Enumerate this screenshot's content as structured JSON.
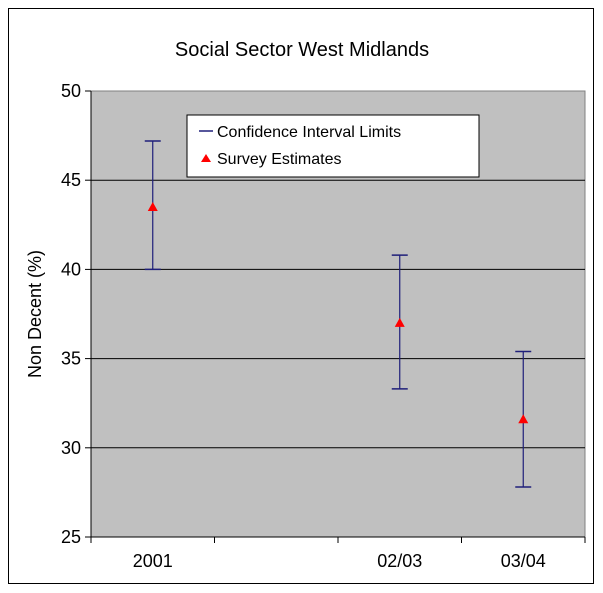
{
  "chart_data": {
    "type": "scatter",
    "title": "Social Sector West Midlands",
    "xlabel": "",
    "ylabel": "Non Decent (%)",
    "ylim": [
      25,
      50
    ],
    "yticks": [
      25,
      30,
      35,
      40,
      45,
      50
    ],
    "categories": [
      "2001",
      "",
      "02/03",
      "03/04"
    ],
    "grid": true,
    "legend_position": "top-right",
    "series": [
      {
        "name": "Confidence Interval Limits",
        "marker": "line",
        "color": "#1f1f7a",
        "intervals": [
          {
            "category": "2001",
            "low": 40.0,
            "high": 47.2
          },
          {
            "category": "02/03",
            "low": 33.3,
            "high": 40.8
          },
          {
            "category": "03/04",
            "low": 27.8,
            "high": 35.4
          }
        ]
      },
      {
        "name": "Survey Estimates",
        "marker": "triangle",
        "color": "#ff0000",
        "values": [
          {
            "category": "2001",
            "y": 43.5
          },
          {
            "category": "02/03",
            "y": 37.0
          },
          {
            "category": "03/04",
            "y": 31.6
          }
        ]
      }
    ]
  }
}
